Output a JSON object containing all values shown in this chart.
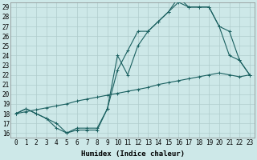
{
  "xlabel": "Humidex (Indice chaleur)",
  "xlim": [
    -0.5,
    23.5
  ],
  "ylim": [
    15.5,
    29.5
  ],
  "xticks": [
    0,
    1,
    2,
    3,
    4,
    5,
    6,
    7,
    8,
    9,
    10,
    11,
    12,
    13,
    14,
    15,
    16,
    17,
    18,
    19,
    20,
    21,
    22,
    23
  ],
  "yticks": [
    16,
    17,
    18,
    19,
    20,
    21,
    22,
    23,
    24,
    25,
    26,
    27,
    28,
    29
  ],
  "bg_color": "#cde8e8",
  "grid_color": "#b0cccc",
  "line_color": "#1a6060",
  "line1_x": [
    0,
    1,
    2,
    3,
    4,
    5,
    6,
    7,
    8,
    9,
    10,
    11,
    12,
    13,
    14,
    15,
    16,
    17,
    18,
    19,
    20,
    21,
    22,
    23
  ],
  "line1_y": [
    18.0,
    18.5,
    18.0,
    17.5,
    17.0,
    16.0,
    16.3,
    16.3,
    16.3,
    18.5,
    24.0,
    22.0,
    25.0,
    26.5,
    27.5,
    28.5,
    30.0,
    29.0,
    29.0,
    29.0,
    27.0,
    24.0,
    23.5,
    22.0
  ],
  "line2_x": [
    0,
    1,
    2,
    3,
    4,
    5,
    6,
    7,
    8,
    9,
    10,
    11,
    12,
    13,
    14,
    15,
    16,
    17,
    18,
    19,
    20,
    21,
    22,
    23
  ],
  "line2_y": [
    18.0,
    18.5,
    18.0,
    17.5,
    16.5,
    16.0,
    16.5,
    16.5,
    16.5,
    18.5,
    22.5,
    24.5,
    26.5,
    26.5,
    27.5,
    28.5,
    29.5,
    29.0,
    29.0,
    29.0,
    27.0,
    26.5,
    23.5,
    22.0
  ],
  "line3_x": [
    0,
    1,
    2,
    3,
    4,
    5,
    6,
    7,
    8,
    9,
    10,
    11,
    12,
    13,
    14,
    15,
    16,
    17,
    18,
    19,
    20,
    21,
    22,
    23
  ],
  "line3_y": [
    18.0,
    18.2,
    18.4,
    18.6,
    18.8,
    19.0,
    19.3,
    19.5,
    19.7,
    19.9,
    20.1,
    20.3,
    20.5,
    20.7,
    21.0,
    21.2,
    21.4,
    21.6,
    21.8,
    22.0,
    22.2,
    22.0,
    21.8,
    22.0
  ],
  "marker_size": 3,
  "linewidth": 0.8,
  "tick_fontsize": 5.5,
  "xlabel_fontsize": 6.5
}
